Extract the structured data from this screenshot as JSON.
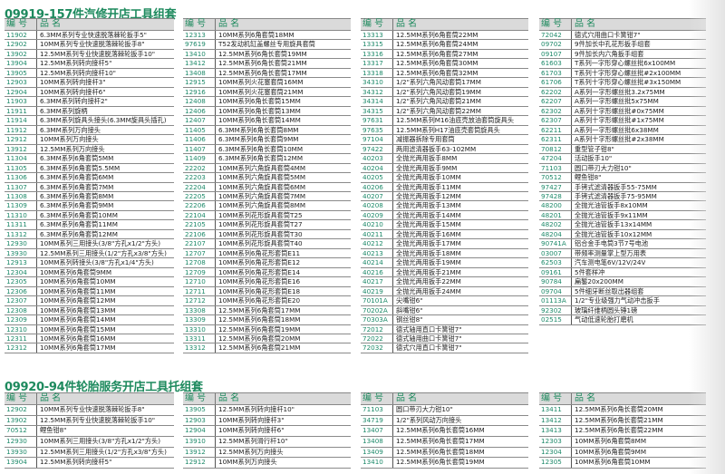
{
  "colors": {
    "accent": "#1e8a5e",
    "header_bg": "#dadada"
  },
  "sections": [
    {
      "title": "09919-157件汽修开店工具组套",
      "header": {
        "code": "编 号",
        "name": "品 名"
      },
      "columns": [
        [
          [
            "11902",
            "6.3MM系列专业快速脱落棘轮扳手5\""
          ],
          [
            "12902",
            "10MM系列专业快速脱落棘轮扳手8\""
          ],
          [
            "13902",
            "12.5MM系列专业快速脱落棘轮扳手10\""
          ],
          [
            "13904",
            "12.5MM系列转向接杆5\""
          ],
          [
            "13905",
            "12.5MM系列转向接杆10\""
          ],
          [
            "12903",
            "10MM系列转向接杆3\""
          ],
          [
            "12904",
            "10MM系列转向接杆6\""
          ],
          [
            "11903",
            "6.3MM系列转向接杆2\""
          ],
          [
            "11911",
            "6.3MM系列旋柄"
          ],
          [
            "11914",
            "6.3MM系列旋具头接头(6.3MM旋具头插孔)"
          ],
          [
            "11912",
            "6.3MM系列万向接头"
          ],
          [
            "12912",
            "10MM系列万向接头"
          ],
          [
            "13912",
            "12.5MM系列万向接头"
          ],
          [
            "11304",
            "6.3MM系列6角套筒5MM"
          ],
          [
            "11305",
            "6.3MM系列6角套筒5.5MM"
          ],
          [
            "11306",
            "6.3MM系列6角套筒6MM"
          ],
          [
            "11307",
            "6.3MM系列6角套筒7MM"
          ],
          [
            "11308",
            "6.3MM系列6角套筒8MM"
          ],
          [
            "11309",
            "6.3MM系列6角套筒9MM"
          ],
          [
            "11310",
            "6.3MM系列6角套筒10MM"
          ],
          [
            "11311",
            "6.3MM系列6角套筒11MM"
          ],
          [
            "11312",
            "6.3MM系列6角套筒12MM"
          ],
          [
            "12930",
            "10MM系列三用接头(3/8\"方孔x1/2\"方头)"
          ],
          [
            "13930",
            "12.5MM系列三用接头(1/2\"方孔x3/8\"方头)"
          ],
          [
            "12913",
            "10MM系列转接头(3/8\"方孔x1/4\"方头)"
          ],
          [
            "12304",
            "10MM系列6角套筒9MM"
          ],
          [
            "12305",
            "10MM系列6角套筒10MM"
          ],
          [
            "12306",
            "10MM系列6角套筒11MM"
          ],
          [
            "12307",
            "10MM系列6角套筒12MM"
          ],
          [
            "12308",
            "10MM系列6角套筒13MM"
          ],
          [
            "12309",
            "10MM系列6角套筒14MM"
          ],
          [
            "12310",
            "10MM系列6角套筒15MM"
          ],
          [
            "12311",
            "10MM系列6角套筒16MM"
          ],
          [
            "12312",
            "10MM系列6角套筒17MM"
          ]
        ],
        [
          [
            "12313",
            "10MM系列6角套筒18MM"
          ],
          [
            "97619",
            "T52发动机缸盖螺丝专用旋具套筒"
          ],
          [
            "13410",
            "12.5MM系列6角长套筒19MM"
          ],
          [
            "13412",
            "12.5MM系列6角长套筒21MM"
          ],
          [
            "13408",
            "12.5MM系列6角长套筒17MM"
          ],
          [
            "12915",
            "10MM系列火花塞套筒16MM"
          ],
          [
            "12916",
            "10MM系列火花塞套筒21MM"
          ],
          [
            "12408",
            "10MM系列6角长套筒15MM"
          ],
          [
            "12406",
            "10MM系列6角长套筒13MM"
          ],
          [
            "12407",
            "10MM系列6角长套筒14MM"
          ],
          [
            "11405",
            "6.3MM系列6角长套筒8MM"
          ],
          [
            "11406",
            "6.3MM系列6角长套筒9MM"
          ],
          [
            "11407",
            "6.3MM系列6角长套筒10MM"
          ],
          [
            "11409",
            "6.3MM系列6角长套筒12MM"
          ],
          [
            "22202",
            "10MM系列六角旋具套筒4MM"
          ],
          [
            "22203",
            "10MM系列六角旋具套筒5MM"
          ],
          [
            "22204",
            "10MM系列六角旋具套筒6MM"
          ],
          [
            "22205",
            "10MM系列六角旋具套筒7MM"
          ],
          [
            "22206",
            "10MM系列六角旋具套筒8MM"
          ],
          [
            "22104",
            "10MM系列花形旋具套筒T25"
          ],
          [
            "22105",
            "10MM系列花形旋具套筒T27"
          ],
          [
            "22106",
            "10MM系列花形旋具套筒T30"
          ],
          [
            "22107",
            "10MM系列花形旋具套筒T40"
          ],
          [
            "12707",
            "10MM系列6角花形套筒E11"
          ],
          [
            "12708",
            "10MM系列6角花形套筒E12"
          ],
          [
            "12709",
            "10MM系列6角花形套筒E14"
          ],
          [
            "12710",
            "10MM系列6角花形套筒E16"
          ],
          [
            "12711",
            "10MM系列6角花形套筒E18"
          ],
          [
            "12712",
            "10MM系列6角花形套筒E20"
          ],
          [
            "13308",
            "12.5MM系列6角套筒17MM"
          ],
          [
            "13309",
            "12.5MM系列6角套筒18MM"
          ],
          [
            "13310",
            "12.5MM系列6角套筒19MM"
          ],
          [
            "13311",
            "12.5MM系列6角套筒20MM"
          ],
          [
            "13312",
            "12.5MM系列6角套筒21MM"
          ]
        ],
        [
          [
            "13313",
            "12.5MM系列6角套筒22MM"
          ],
          [
            "13315",
            "12.5MM系列6角套筒24MM"
          ],
          [
            "13316",
            "12.5MM系列6角套筒27MM"
          ],
          [
            "13317",
            "12.5MM系列6角套筒30MM"
          ],
          [
            "13318",
            "12.5MM系列6角套筒32MM"
          ],
          [
            "34310",
            "1/2\"系列六角风动套筒17MM"
          ],
          [
            "34312",
            "1/2\"系列六角风动套筒19MM"
          ],
          [
            "34314",
            "1/2\"系列六角风动套筒21MM"
          ],
          [
            "34315",
            "1/2\"系列六角风动套筒22MM"
          ],
          [
            "97631",
            "12.5MM系列M16油底壳放油套筒旋具头"
          ],
          [
            "97635",
            "12.5MM系列H17油底壳套筒旋具头"
          ],
          [
            "97104",
            "减振器拆除专用套筒"
          ],
          [
            "97422",
            "两用滤清器扳手63-102MM"
          ],
          [
            "40203",
            "全抛光两用扳手8MM"
          ],
          [
            "40204",
            "全抛光两用扳手9MM"
          ],
          [
            "40205",
            "全抛光两用扳手10MM"
          ],
          [
            "40206",
            "全抛光两用扳手11MM"
          ],
          [
            "40207",
            "全抛光两用扳手12MM"
          ],
          [
            "40208",
            "全抛光两用扳手13MM"
          ],
          [
            "40209",
            "全抛光两用扳手14MM"
          ],
          [
            "40210",
            "全抛光两用扳手15MM"
          ],
          [
            "40211",
            "全抛光两用扳手16MM"
          ],
          [
            "40212",
            "全抛光两用扳手17MM"
          ],
          [
            "40213",
            "全抛光两用扳手18MM"
          ],
          [
            "40214",
            "全抛光两用扳手19MM"
          ],
          [
            "40216",
            "全抛光两用扳手21MM"
          ],
          [
            "40217",
            "全抛光两用扳手22MM"
          ],
          [
            "40219",
            "全抛光两用扳手24MM"
          ],
          [
            "70101A",
            "尖嘴钳6\""
          ],
          [
            "70202A",
            "斜嘴钳6\""
          ],
          [
            "70303A",
            "钢丝钳8\""
          ],
          [
            "72012",
            "德式轴用直口卡簧钳7\""
          ],
          [
            "72022",
            "德式轴用曲口卡簧钳7\""
          ],
          [
            "72032",
            "德式穴用直口卡簧钳7\""
          ]
        ],
        [
          [
            "72042",
            "德式穴用曲口卡簧钳7\""
          ],
          [
            "09702",
            "9件加长中孔花形扳手组套"
          ],
          [
            "09107",
            "9件加长内六角扳手组套"
          ],
          [
            "61603",
            "T系列一字形穿心螺丝批6x100MM"
          ],
          [
            "61703",
            "T系列十字形穿心螺丝批#2x100MM"
          ],
          [
            "61706",
            "T系列十字形穿心螺丝批#3x150MM"
          ],
          [
            "62202",
            "A系列一字形螺丝批3.2x75MM"
          ],
          [
            "62207",
            "A系列一字形螺丝批5x75MM"
          ],
          [
            "62302",
            "A系列十字形螺丝批#0x75MM"
          ],
          [
            "62307",
            "A系列十字形螺丝批#1x75MM"
          ],
          [
            "62211",
            "A系列一字形螺丝批6x38MM"
          ],
          [
            "62311",
            "A系列十字形螺丝批#2x38MM"
          ],
          [
            "70812",
            "重型管子钳8\""
          ],
          [
            "47204",
            "活动扳手10\""
          ],
          [
            "71103",
            "圆口带刃大力钳10\""
          ],
          [
            "70512",
            "鲤鱼钳8\""
          ],
          [
            "97427",
            "手铐式滤清器扳手55-75MM"
          ],
          [
            "97428",
            "手铐式滤清器扳手75-95MM"
          ],
          [
            "48200",
            "全抛光油管扳手8x10MM"
          ],
          [
            "48201",
            "全抛光油管扳手9x11MM"
          ],
          [
            "48202",
            "全抛光油管扳手13x14MM"
          ],
          [
            "48204",
            "全抛光油管扳手10x12MM"
          ],
          [
            "90741A",
            "铝合金手电筒3节7号电池"
          ],
          [
            "03007",
            "带频率测量掌上型万用表"
          ],
          [
            "62503",
            "汽车测电笔6V/12V/24V"
          ],
          [
            "09161",
            "5件套样冲"
          ],
          [
            "90784",
            "扁錾20x200MM"
          ],
          [
            "09704",
            "5件细牙断丝取出器组套"
          ],
          [
            "01113A",
            "1/2\"专业级强力气动冲击扳手"
          ],
          [
            "92302",
            "玻璃纤维柄圆头锤1磅"
          ],
          [
            "02515",
            "气动低速轮胎打磨机"
          ]
        ]
      ]
    },
    {
      "title": "09920-94件轮胎服务开店工具托组套",
      "header": {
        "code": "编 号",
        "name": "品 名"
      },
      "columns": [
        [
          [
            "12902",
            "10MM系列专业快速脱落棘轮扳手8\""
          ],
          [
            "13902",
            "12.5MM系列专业快速脱落棘轮扳手10\""
          ],
          [
            "70512",
            "鲤鱼钳8\""
          ],
          [
            "12930",
            "10MM系列三用接头(3/8\"方孔x1/2\"方头)"
          ],
          [
            "13930",
            "12.5MM系列三用接头(1/2\"方孔x3/8\"方头)"
          ],
          [
            "13904",
            "12.5MM系列转向接杆5\""
          ]
        ],
        [
          [
            "13905",
            "12.5MM系列转向接杆10\""
          ],
          [
            "12903",
            "10MM系列转向接杆3\""
          ],
          [
            "12904",
            "10MM系列转向接杆6\""
          ],
          [
            "13910",
            "12.5MM系列滑行杆10\""
          ],
          [
            "13912",
            "12.5MM系列万向接头"
          ],
          [
            "12912",
            "10MM系列万向接头"
          ]
        ],
        [
          [
            "71103",
            "圆口带刃大力钳10\""
          ],
          [
            "34719",
            "1/2\"系列风动万向接头"
          ],
          [
            "13407",
            "12.5MM系列6角长套筒16MM"
          ],
          [
            "13408",
            "12.5MM系列6角长套筒17MM"
          ],
          [
            "13409",
            "12.5MM系列6角长套筒18MM"
          ],
          [
            "13410",
            "12.5MM系列6角长套筒19MM"
          ]
        ],
        [
          [
            "13411",
            "12.5MM系列6角长套筒20MM"
          ],
          [
            "13412",
            "12.5MM系列6角长套筒21MM"
          ],
          [
            "13413",
            "12.5MM系列6角长套筒22MM"
          ],
          [
            "12303",
            "10MM系列6角套筒8MM"
          ],
          [
            "12304",
            "10MM系列6角套筒9MM"
          ],
          [
            "12305",
            "10MM系列6角套筒10MM"
          ]
        ]
      ]
    }
  ]
}
